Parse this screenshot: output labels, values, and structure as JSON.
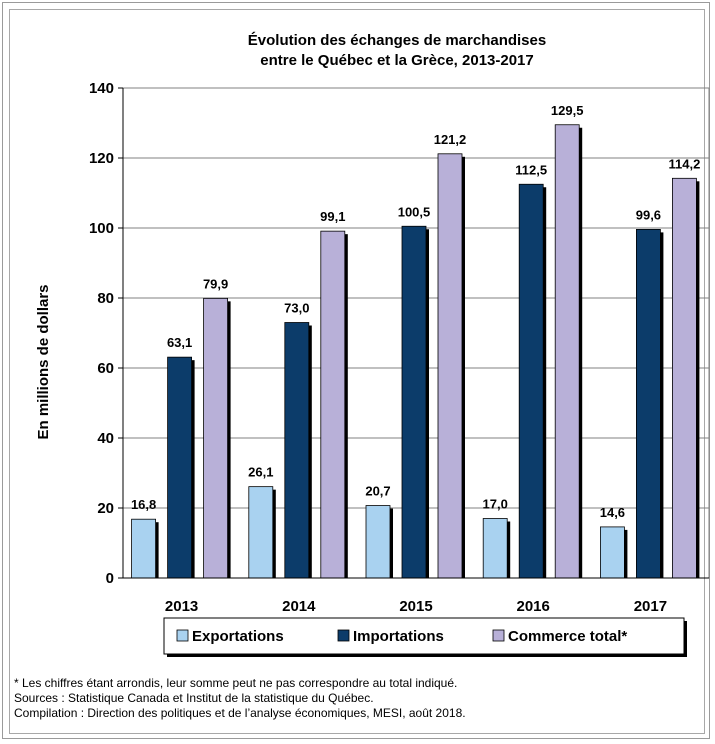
{
  "chart_data": {
    "type": "bar",
    "title": [
      "Évolution des échanges de marchandises",
      "entre le Québec et la Grèce, 2013-2017"
    ],
    "ylabel": "En millions de dollars",
    "xlabel": "",
    "ylim": [
      0,
      140
    ],
    "yticks": [
      0,
      20,
      40,
      60,
      80,
      100,
      120,
      140
    ],
    "categories": [
      "2013",
      "2014",
      "2015",
      "2016",
      "2017"
    ],
    "series": [
      {
        "name": "Exportations",
        "color": "#a9d2f0",
        "values": [
          16.8,
          26.1,
          20.7,
          17.0,
          14.6
        ],
        "labels": [
          "16,8",
          "26,1",
          "20,7",
          "17,0",
          "14,6"
        ]
      },
      {
        "name": "Importations",
        "color": "#0c3c6a",
        "values": [
          63.1,
          73.0,
          100.5,
          112.5,
          99.6
        ],
        "labels": [
          "63,1",
          "73,0",
          "100,5",
          "112,5",
          "99,6"
        ]
      },
      {
        "name": "Commerce total*",
        "color": "#b8b0d8",
        "values": [
          79.9,
          99.1,
          121.2,
          129.5,
          114.2
        ],
        "labels": [
          "79,9",
          "99,1",
          "121,2",
          "129,5",
          "114,2"
        ]
      }
    ],
    "grid": "horizontal",
    "legend_position": "bottom"
  },
  "notes": {
    "line1": "* Les chiffres étant arrondis, leur somme peut ne pas correspondre au total indiqué.",
    "line2": "Sources : Statistique Canada et Institut de la statistique du Québec.",
    "line3": "Compilation : Direction des politiques et de l’analyse économiques, MESI, août 2018."
  }
}
